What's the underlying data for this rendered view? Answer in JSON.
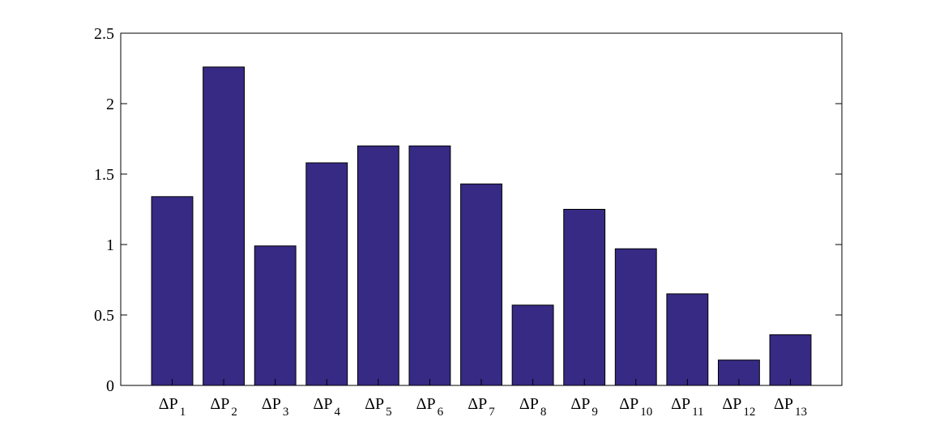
{
  "chart_data": {
    "type": "bar",
    "categories": [
      "ΔP1",
      "ΔP2",
      "ΔP3",
      "ΔP4",
      "ΔP5",
      "ΔP6",
      "ΔP7",
      "ΔP8",
      "ΔP9",
      "ΔP10",
      "ΔP11",
      "ΔP12",
      "ΔP13"
    ],
    "category_labels": [
      {
        "main": "ΔP",
        "sub": "1"
      },
      {
        "main": "ΔP",
        "sub": "2"
      },
      {
        "main": "ΔP",
        "sub": "3"
      },
      {
        "main": "ΔP",
        "sub": "4"
      },
      {
        "main": "ΔP",
        "sub": "5"
      },
      {
        "main": "ΔP",
        "sub": "6"
      },
      {
        "main": "ΔP",
        "sub": "7"
      },
      {
        "main": "ΔP",
        "sub": "8"
      },
      {
        "main": "ΔP",
        "sub": "9"
      },
      {
        "main": "ΔP",
        "sub": "10"
      },
      {
        "main": "ΔP",
        "sub": "11"
      },
      {
        "main": "ΔP",
        "sub": "12"
      },
      {
        "main": "ΔP",
        "sub": "13"
      }
    ],
    "values": [
      1.34,
      2.26,
      0.99,
      1.58,
      1.7,
      1.7,
      1.43,
      0.57,
      1.25,
      0.97,
      0.65,
      0.18,
      0.36
    ],
    "ylim": [
      0,
      2.5
    ],
    "yticks": [
      0,
      0.5,
      1,
      1.5,
      2,
      2.5
    ],
    "ytick_labels": [
      "0",
      "0.5",
      "1",
      "1.5",
      "2",
      "2.5"
    ],
    "title": "",
    "xlabel": "",
    "ylabel": "",
    "grid": false,
    "bar_color": "#362A85",
    "bar_edge_color": "#000000"
  }
}
